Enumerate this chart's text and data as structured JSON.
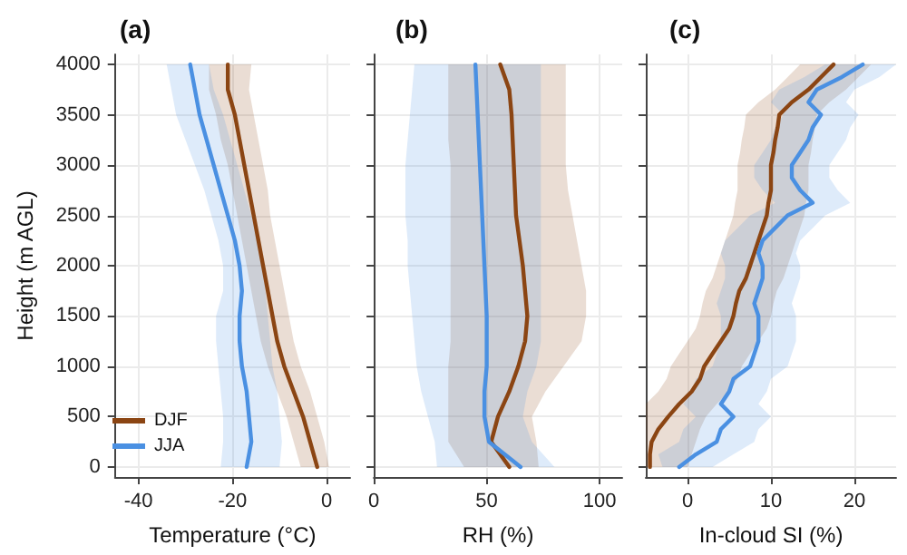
{
  "chart_data": [
    {
      "type": "line",
      "title": "(a)",
      "xlabel": "Temperature (°C)",
      "ylabel": "Height (m AGL)",
      "orientation": "horizontal",
      "x": [
        0,
        250,
        500,
        750,
        1000,
        1250,
        1500,
        1750,
        2000,
        2250,
        2500,
        2750,
        3000,
        3250,
        3500,
        3750,
        4000
      ],
      "xlim": [
        -45,
        5
      ],
      "xticks": [
        -40,
        -20,
        0
      ],
      "ylim": [
        -100,
        4100
      ],
      "yticks": [
        0,
        500,
        1000,
        1500,
        2000,
        2500,
        3000,
        3500,
        4000
      ],
      "grid": true,
      "legend": "bottom left",
      "marker": "none",
      "line_style": "solid",
      "series": [
        {
          "name": "DJF",
          "color": "#8b4513",
          "values": [
            -2,
            -3.5,
            -5,
            -7,
            -9,
            -10.5,
            -11.5,
            -12.5,
            -13.5,
            -14.5,
            -15.5,
            -16.5,
            -17.5,
            -18.5,
            -19.5,
            -21,
            -21
          ],
          "lower": [
            -5.5,
            -7,
            -8.5,
            -10.5,
            -12.5,
            -14,
            -15,
            -16,
            -17,
            -18,
            -19,
            -20,
            -21,
            -22.5,
            -23.5,
            -25,
            -25
          ],
          "upper": [
            0.5,
            -0.5,
            -2,
            -3.5,
            -5.5,
            -7,
            -8,
            -9,
            -10,
            -11,
            -12,
            -12.5,
            -13.5,
            -14.5,
            -15.5,
            -16.5,
            -16
          ]
        },
        {
          "name": "JJA",
          "color": "#4a90e2",
          "values": [
            -17,
            -16,
            -16.5,
            -17,
            -18,
            -18.5,
            -18.5,
            -18,
            -18.5,
            -19.5,
            -21,
            -22.5,
            -24,
            -25.5,
            -27,
            -28,
            -29
          ],
          "lower": [
            -22.5,
            -22,
            -22,
            -22.5,
            -23,
            -23.5,
            -23.5,
            -22,
            -22,
            -23,
            -24.5,
            -26,
            -28,
            -30,
            -32,
            -33,
            -34
          ],
          "upper": [
            -10,
            -9.5,
            -10,
            -10.5,
            -11.5,
            -12,
            -12.5,
            -13,
            -13.5,
            -14.5,
            -16,
            -17.5,
            -19,
            -20.5,
            -22,
            -24,
            -25
          ]
        }
      ]
    },
    {
      "type": "line",
      "title": "(b)",
      "xlabel": "RH (%)",
      "orientation": "horizontal",
      "x": [
        0,
        250,
        500,
        750,
        1000,
        1250,
        1500,
        1750,
        2000,
        2250,
        2500,
        2750,
        3000,
        3250,
        3500,
        3750,
        4000
      ],
      "xlim": [
        0,
        110
      ],
      "xticks": [
        0,
        50,
        100
      ],
      "ylim": [
        -100,
        4100
      ],
      "yticks": [
        0,
        500,
        1000,
        1500,
        2000,
        2500,
        3000,
        3500,
        4000
      ],
      "tick_labels": "x",
      "grid": true,
      "marker": "none",
      "line_style": "solid",
      "series": [
        {
          "color": "#8b4513",
          "values": [
            60,
            52,
            55,
            60,
            64,
            67,
            68,
            67,
            66,
            64.5,
            63,
            62.5,
            62,
            61.5,
            61,
            60,
            56
          ],
          "lower": [
            40,
            33,
            33,
            33,
            33,
            34,
            34,
            34,
            34,
            34,
            34,
            34,
            34,
            33,
            33,
            33,
            33
          ],
          "upper": [
            73,
            72,
            70,
            76,
            84,
            92,
            94,
            94,
            92,
            90,
            88,
            86,
            85,
            85,
            85,
            85,
            85
          ]
        },
        {
          "color": "#4a90e2",
          "values": [
            65,
            51,
            49,
            49,
            50,
            50,
            50,
            49.5,
            49,
            48.5,
            48,
            47.5,
            47,
            46.5,
            46,
            45.5,
            45
          ],
          "lower": [
            28,
            27,
            24,
            21,
            19,
            18,
            17,
            16,
            15,
            15,
            14,
            14,
            14,
            15,
            16,
            17,
            18
          ],
          "upper": [
            80,
            70,
            66,
            68,
            72,
            74,
            74,
            74,
            74,
            74,
            74,
            74,
            74,
            74,
            74,
            74,
            74
          ]
        }
      ]
    },
    {
      "type": "line",
      "title": "(c)",
      "xlabel": "In-cloud SI (%)",
      "orientation": "horizontal",
      "x": [
        0,
        125,
        250,
        375,
        500,
        625,
        750,
        875,
        1000,
        1125,
        1250,
        1375,
        1500,
        1625,
        1750,
        1875,
        2000,
        2125,
        2250,
        2375,
        2500,
        2625,
        2750,
        2875,
        3000,
        3125,
        3250,
        3375,
        3500,
        3625,
        3750,
        3875,
        4000
      ],
      "xlim": [
        -5,
        25
      ],
      "xticks": [
        0,
        10,
        20
      ],
      "ylim": [
        -100,
        4100
      ],
      "yticks": [
        0,
        500,
        1000,
        1500,
        2000,
        2500,
        3000,
        3500,
        4000
      ],
      "tick_labels": "x",
      "grid": true,
      "marker": "none",
      "line_style": "solid",
      "series": [
        {
          "color": "#8b4513",
          "values": [
            -4.5,
            -4.5,
            -4.3,
            -3.5,
            -2.3,
            -1,
            0.5,
            1.5,
            2,
            3,
            4,
            5,
            5.5,
            5.8,
            6.2,
            7,
            7.5,
            8,
            8.5,
            9,
            9.5,
            9.7,
            10,
            10,
            10,
            10.3,
            10.5,
            10.8,
            11,
            12.5,
            14.5,
            16,
            17.5
          ],
          "lower": [
            -5,
            -5,
            -5,
            -5,
            -5,
            -5,
            -3.5,
            -2.5,
            -2,
            -1,
            0,
            1,
            1.5,
            1.8,
            2.2,
            3,
            3.5,
            4,
            4.5,
            5,
            5.5,
            5.7,
            6,
            6,
            6,
            6.3,
            6.5,
            6.8,
            7,
            8.5,
            10.5,
            12,
            13.5
          ],
          "upper": [
            0,
            0.5,
            1,
            1.5,
            2.2,
            3.5,
            5,
            6,
            6.5,
            7.5,
            8.5,
            9.5,
            10,
            10.3,
            10.7,
            11.5,
            12,
            12.5,
            13,
            13.5,
            14,
            14.2,
            14.5,
            14.5,
            14.5,
            14.8,
            15,
            15.3,
            15.5,
            17,
            19,
            20.5,
            22
          ]
        },
        {
          "color": "#4a90e2",
          "values": [
            -1,
            1,
            3.5,
            4,
            5.5,
            4,
            5,
            5.5,
            7.5,
            8,
            8.5,
            8.5,
            8.5,
            8,
            8.5,
            9,
            9,
            8.5,
            9,
            10.5,
            12,
            15,
            13.5,
            12.5,
            12.5,
            13.5,
            14.5,
            15,
            16,
            14.5,
            15.5,
            18.5,
            21
          ],
          "lower": [
            -3,
            -3.5,
            -1,
            -0.5,
            1,
            -0.5,
            0.5,
            1,
            3,
            3.5,
            4,
            4,
            4,
            3.5,
            4,
            4.5,
            4.5,
            4,
            4.5,
            6,
            7.5,
            10.5,
            9,
            8,
            8,
            9,
            10,
            10.5,
            11.5,
            10,
            11,
            14,
            16.5
          ],
          "upper": [
            3,
            5.5,
            8,
            8.5,
            10,
            8.5,
            9.5,
            10,
            12,
            12.5,
            13,
            13,
            13,
            12.5,
            13,
            13.5,
            13.5,
            13,
            13.5,
            15,
            16.5,
            19.5,
            18,
            17,
            17,
            18,
            19,
            19.5,
            20.5,
            19,
            20,
            23,
            25
          ]
        }
      ]
    }
  ]
}
